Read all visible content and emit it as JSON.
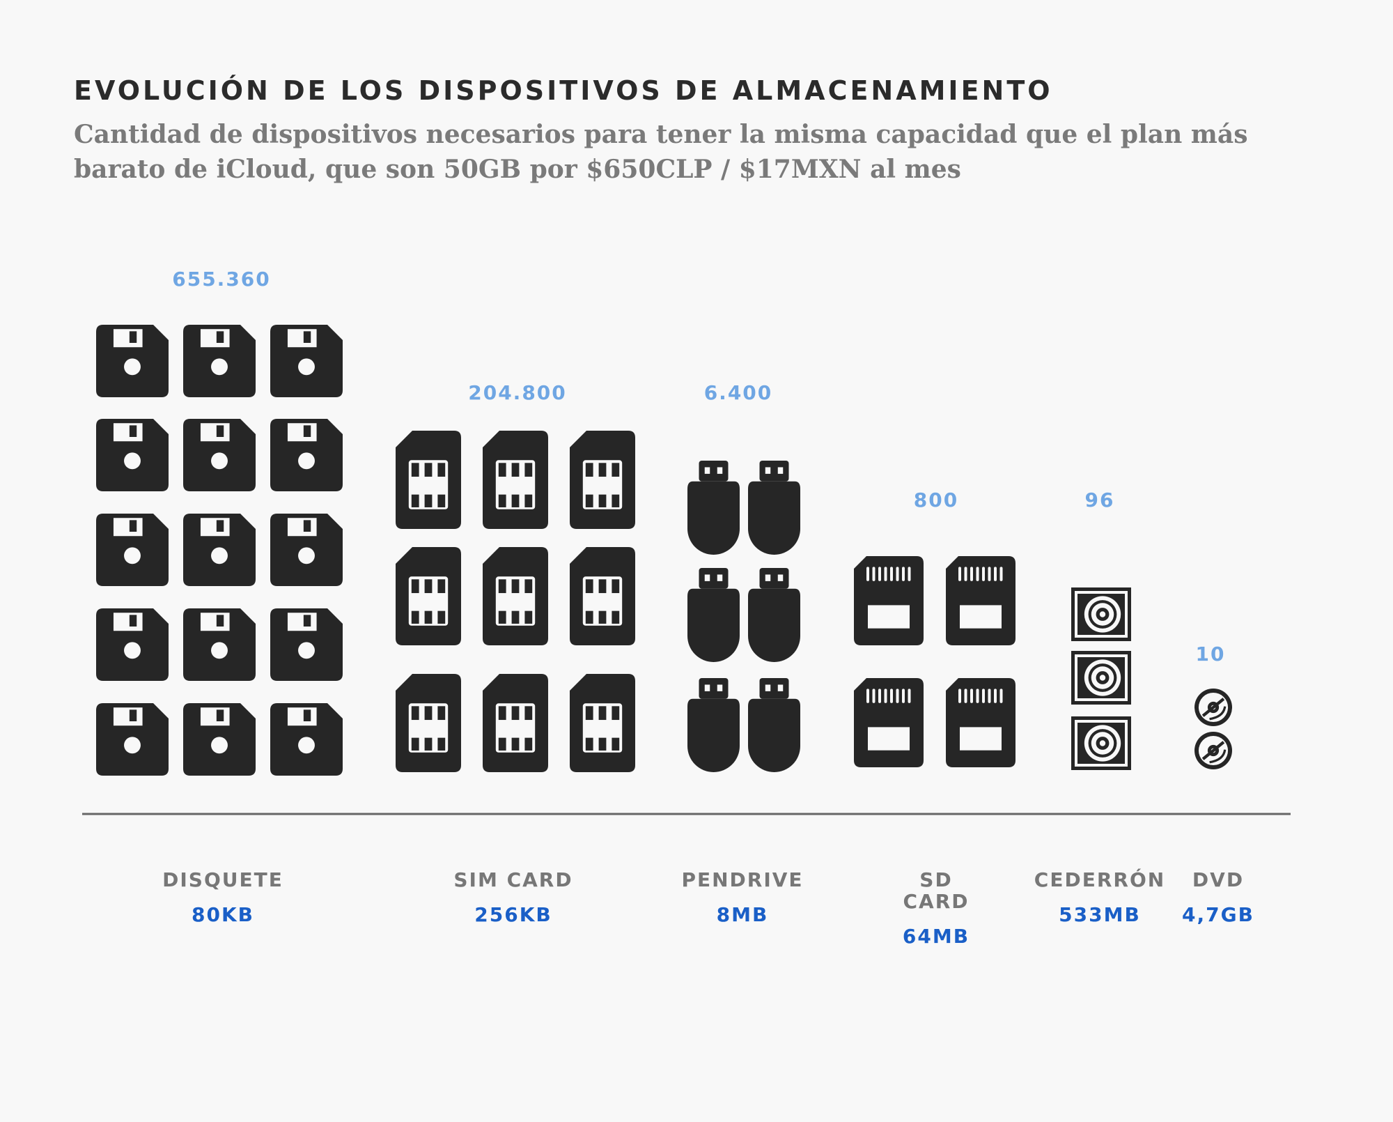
{
  "header": {
    "title": "EVOLUCIÓN DE LOS DISPOSITIVOS DE ALMACENAMIENTO",
    "subtitle": "Cantidad de dispositivos necesarios para tener la misma capacidad que el plan más barato de iCloud, que son 50GB por $650CLP / $17MXN al mes"
  },
  "colors": {
    "icon": "#262626",
    "count": "#6fa6e3",
    "category": "#777777",
    "capacity": "#1a5fc7",
    "axis": "#666666"
  },
  "chart_data": {
    "type": "bar",
    "title": "EVOLUCIÓN DE LOS DISPOSITIVOS DE ALMACENAMIENTO",
    "categories": [
      "DISQUETE",
      "SIM CARD",
      "PENDRIVE",
      "SD CARD",
      "CEDERRÓN",
      "DVD"
    ],
    "capacities": [
      "80KB",
      "256KB",
      "8MB",
      "64MB",
      "533MB",
      "4,7GB"
    ],
    "values": [
      655360,
      204800,
      6400,
      800,
      96,
      10
    ],
    "value_labels": [
      "655.360",
      "204.800",
      "6.400",
      "800",
      "96",
      "10"
    ],
    "icons": [
      "floppy-disk-icon",
      "sim-card-icon",
      "usb-drive-icon",
      "sd-card-icon",
      "cd-case-icon",
      "dvd-disc-icon"
    ],
    "icons_shown": [
      15,
      9,
      6,
      4,
      3,
      2
    ],
    "legend": "none",
    "grid": false
  }
}
